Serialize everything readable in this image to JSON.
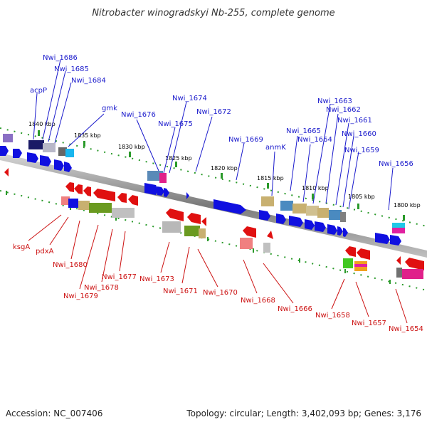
{
  "title": "Nitrobacter winogradskyi Nb-255, complete genome",
  "footer": {
    "accession": "Accession: NC_007406",
    "summary": "Topology: circular; Length: 3,402,093 bp; Genes: 3,176"
  },
  "ticks": [
    "1840 kbp",
    "1835 kbp",
    "1830 kbp",
    "1825 kbp",
    "1820 kbp",
    "1815 kbp",
    "1810 kbp",
    "1805 kbp",
    "1800 kbp"
  ],
  "top_labels": [
    "Nwi_1686",
    "Nwi_1685",
    "Nwi_1684",
    "acpP",
    "gmk",
    "Nwi_1676",
    "Nwi_1674",
    "Nwi_1675",
    "Nwi_1672",
    "Nwi_1669",
    "anmK",
    "Nwi_1665",
    "Nwi_1664",
    "Nwi_1663",
    "Nwi_1662",
    "Nwi_1661",
    "Nwi_1660",
    "Nwi_1659",
    "Nwi_1656"
  ],
  "bottom_labels": [
    "ksgA",
    "pdxA",
    "Nwi_1680",
    "Nwi_1679",
    "Nwi_1678",
    "Nwi_1677",
    "Nwi_1673",
    "Nwi_1671",
    "Nwi_1670",
    "Nwi_1668",
    "Nwi_1666",
    "Nwi_1658",
    "Nwi_1657",
    "Nwi_1654"
  ],
  "colors": {
    "forward": "#1010e0",
    "reverse": "#e01010",
    "top_label": "#1a1acc",
    "bottom_label": "#cc1111",
    "axis": "#888888",
    "tick_dot": "#2a9a2a"
  }
}
